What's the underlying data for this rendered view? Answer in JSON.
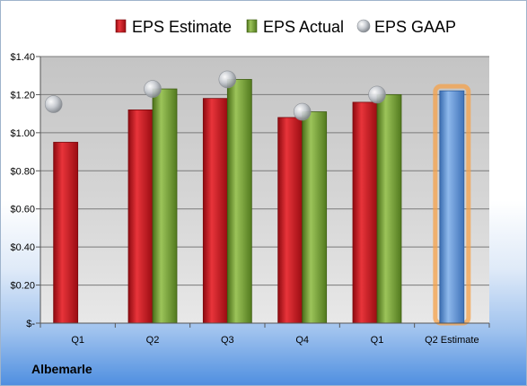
{
  "company": "Albemarle",
  "chart_data": {
    "type": "bar",
    "categories": [
      "Q1",
      "Q2",
      "Q3",
      "Q4",
      "Q1",
      "Q2 Estimate"
    ],
    "series": [
      {
        "name": "EPS Estimate",
        "type": "bar",
        "color": "#c8141c",
        "values": [
          0.95,
          1.12,
          1.18,
          1.08,
          1.16,
          null
        ]
      },
      {
        "name": "EPS Actual",
        "type": "bar",
        "color": "#6e9a2c",
        "values": [
          null,
          1.23,
          1.28,
          1.11,
          1.2,
          null
        ]
      },
      {
        "name": "EPS GAAP",
        "type": "scatter",
        "color": "#b8bcc2",
        "values": [
          1.15,
          1.23,
          1.28,
          1.11,
          1.2,
          null
        ]
      },
      {
        "name": "Q2 Estimate",
        "type": "bar",
        "color": "#5b8fd0",
        "highlight": "#f5a24a",
        "values": [
          null,
          null,
          null,
          null,
          null,
          1.22
        ]
      }
    ],
    "yticks": [
      0,
      0.2,
      0.4,
      0.6,
      0.8,
      1.0,
      1.2,
      1.4
    ],
    "ytick_labels": [
      "$-",
      "$0.20",
      "$0.40",
      "$0.60",
      "$0.80",
      "$1.00",
      "$1.20",
      "$1.40"
    ],
    "ylim": [
      0,
      1.4
    ],
    "grid": true,
    "legend_position": "top",
    "title": "",
    "xlabel": "",
    "ylabel": ""
  }
}
